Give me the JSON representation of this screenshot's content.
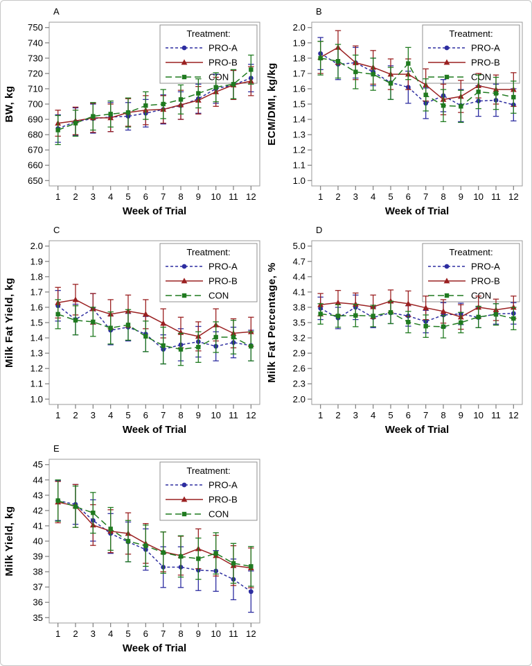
{
  "figure_style": {
    "background": "#ffffff",
    "border_color": "#c6c6c6",
    "frame_color": "#9a9a9a",
    "tick_color": "#7d7d7d",
    "text_color": "#000000",
    "legend_border_color": "#8f8f8f",
    "legend_background": "#ffffff",
    "treatments": [
      {
        "name": "PRO-A",
        "color": "#2d2da0",
        "marker": "circle",
        "dash": "4,3"
      },
      {
        "name": "PRO-B",
        "color": "#9a2021",
        "marker": "triangle",
        "dash": ""
      },
      {
        "name": "CON",
        "color": "#1f7a1f",
        "marker": "square",
        "dash": "9,5"
      }
    ]
  },
  "chart_data": [
    {
      "type": "line",
      "panel_label": "A",
      "xlabel": "Week of Trial",
      "ylabel": "BW, kg",
      "x": [
        1,
        2,
        3,
        4,
        5,
        6,
        7,
        8,
        9,
        10,
        11,
        12
      ],
      "ylim": [
        650,
        750
      ],
      "ystep": 10,
      "ydecimals": 0,
      "legend_title": "Treatment:",
      "legend_position": "top-right",
      "grid": false,
      "series": [
        {
          "name": "PRO-A",
          "values": [
            684,
            688.5,
            690.5,
            691.5,
            692,
            694,
            696.5,
            699,
            703.5,
            710,
            712.5,
            717
          ],
          "err": [
            9,
            9,
            9.5,
            9.5,
            9,
            9,
            9.5,
            9,
            9.5,
            9.5,
            9.5,
            9
          ]
        },
        {
          "name": "PRO-B",
          "values": [
            687.5,
            689,
            691,
            691,
            694.5,
            696,
            696.5,
            699.5,
            702.5,
            708,
            712.5,
            715
          ],
          "err": [
            8.5,
            9,
            9.5,
            9,
            9,
            9.5,
            9,
            9.5,
            9,
            9.5,
            9.5,
            9.5
          ]
        },
        {
          "name": "CON",
          "values": [
            683,
            687.5,
            692,
            693.5,
            694.5,
            699,
            700,
            703,
            707,
            711,
            713,
            722.5
          ],
          "err": [
            9.5,
            8.5,
            9,
            8.5,
            9.5,
            9,
            9.5,
            9.5,
            9.5,
            9.5,
            9.5,
            9.5
          ]
        }
      ]
    },
    {
      "type": "line",
      "panel_label": "B",
      "xlabel": "Week of Trial",
      "ylabel": "ECM/DMI, kg/kg",
      "x": [
        1,
        2,
        3,
        4,
        5,
        6,
        7,
        8,
        9,
        10,
        11,
        12
      ],
      "ylim": [
        1.0,
        2.0
      ],
      "ystep": 0.1,
      "ydecimals": 1,
      "legend_title": "Treatment:",
      "legend_position": "top-right",
      "grid": false,
      "series": [
        {
          "name": "PRO-A",
          "values": [
            1.83,
            1.76,
            1.77,
            1.71,
            1.64,
            1.61,
            1.505,
            1.555,
            1.49,
            1.52,
            1.525,
            1.495
          ],
          "err": [
            0.105,
            0.1,
            0.1,
            0.09,
            0.11,
            0.105,
            0.1,
            0.105,
            0.105,
            0.1,
            0.105,
            0.105
          ]
        },
        {
          "name": "PRO-B",
          "values": [
            1.805,
            1.87,
            1.77,
            1.74,
            1.695,
            1.695,
            1.625,
            1.53,
            1.55,
            1.62,
            1.595,
            1.595
          ],
          "err": [
            0.105,
            0.11,
            0.11,
            0.11,
            0.1,
            0.1,
            0.105,
            0.1,
            0.105,
            0.08,
            0.095,
            0.11
          ]
        },
        {
          "name": "CON",
          "values": [
            1.8,
            1.78,
            1.71,
            1.695,
            1.635,
            1.765,
            1.56,
            1.49,
            1.485,
            1.58,
            1.57,
            1.545
          ],
          "err": [
            0.11,
            0.11,
            0.11,
            0.105,
            0.105,
            0.105,
            0.105,
            0.105,
            0.105,
            0.11,
            0.105,
            0.105
          ]
        }
      ]
    },
    {
      "type": "line",
      "panel_label": "C",
      "xlabel": "Week of Trial",
      "ylabel": "Milk Fat Yield, kg",
      "x": [
        1,
        2,
        3,
        4,
        5,
        6,
        7,
        8,
        9,
        10,
        11,
        12
      ],
      "ylim": [
        1.0,
        2.0
      ],
      "ystep": 0.1,
      "ydecimals": 1,
      "legend_title": "Treatment:",
      "legend_position": "top-right",
      "grid": false,
      "series": [
        {
          "name": "PRO-A",
          "values": [
            1.61,
            1.52,
            1.59,
            1.45,
            1.47,
            1.425,
            1.325,
            1.355,
            1.375,
            1.345,
            1.37,
            1.35
          ],
          "err": [
            0.1,
            0.1,
            0.1,
            0.095,
            0.09,
            0.115,
            0.095,
            0.105,
            0.1,
            0.095,
            0.1,
            0.1
          ]
        },
        {
          "name": "PRO-B",
          "values": [
            1.63,
            1.65,
            1.59,
            1.555,
            1.575,
            1.555,
            1.495,
            1.435,
            1.41,
            1.485,
            1.43,
            1.44
          ],
          "err": [
            0.1,
            0.1,
            0.1,
            0.095,
            0.105,
            0.095,
            0.095,
            0.1,
            0.095,
            0.105,
            0.095,
            0.095
          ]
        },
        {
          "name": "CON",
          "values": [
            1.555,
            1.515,
            1.505,
            1.465,
            1.485,
            1.41,
            1.35,
            1.325,
            1.34,
            1.405,
            1.405,
            1.345
          ],
          "err": [
            0.095,
            0.095,
            0.095,
            0.105,
            0.1,
            0.1,
            0.12,
            0.105,
            0.1,
            0.1,
            0.11,
            0.095
          ]
        }
      ]
    },
    {
      "type": "line",
      "panel_label": "D",
      "xlabel": "Week of Trial",
      "ylabel": "Milk Fat Percentage, %",
      "x": [
        1,
        2,
        3,
        4,
        5,
        6,
        7,
        8,
        9,
        10,
        11,
        12
      ],
      "ylim": [
        2.0,
        5.0
      ],
      "ystep": 0.3,
      "ydecimals": 1,
      "legend_title": "Treatment:",
      "legend_position": "top-right",
      "grid": false,
      "series": [
        {
          "name": "PRO-A",
          "values": [
            3.78,
            3.59,
            3.8,
            3.6,
            3.69,
            3.63,
            3.52,
            3.65,
            3.67,
            3.6,
            3.67,
            3.68
          ],
          "err": [
            0.22,
            0.21,
            0.24,
            0.2,
            0.21,
            0.2,
            0.22,
            0.24,
            0.21,
            0.2,
            0.2,
            0.21
          ]
        },
        {
          "name": "PRO-B",
          "values": [
            3.85,
            3.89,
            3.86,
            3.81,
            3.92,
            3.87,
            3.79,
            3.72,
            3.61,
            3.8,
            3.75,
            3.8
          ],
          "err": [
            0.22,
            0.24,
            0.22,
            0.23,
            0.22,
            0.25,
            0.23,
            0.23,
            0.24,
            0.22,
            0.21,
            0.22
          ]
        },
        {
          "name": "CON",
          "values": [
            3.67,
            3.63,
            3.64,
            3.63,
            3.7,
            3.51,
            3.43,
            3.42,
            3.5,
            3.61,
            3.66,
            3.58
          ],
          "err": [
            0.2,
            0.22,
            0.22,
            0.21,
            0.22,
            0.21,
            0.22,
            0.22,
            0.2,
            0.21,
            0.21,
            0.22
          ]
        }
      ]
    },
    {
      "type": "line",
      "panel_label": "E",
      "xlabel": "Week of Trial",
      "ylabel": "Milk Yield, kg",
      "x": [
        1,
        2,
        3,
        4,
        5,
        6,
        7,
        8,
        9,
        10,
        11,
        12
      ],
      "ylim": [
        35,
        45
      ],
      "ystep": 1,
      "ydecimals": 0,
      "legend_title": "Treatment:",
      "legend_position": "top-right",
      "grid": false,
      "series": [
        {
          "name": "PRO-A",
          "values": [
            42.65,
            42.4,
            41.35,
            40.5,
            39.95,
            39.45,
            38.3,
            38.3,
            38.1,
            38.05,
            37.5,
            36.7
          ],
          "err": [
            1.3,
            1.3,
            1.35,
            1.3,
            1.3,
            1.35,
            1.33,
            1.33,
            1.33,
            1.33,
            1.33,
            1.35
          ]
        },
        {
          "name": "PRO-B",
          "values": [
            42.55,
            42.3,
            41.05,
            40.65,
            40.5,
            39.85,
            39.3,
            39.05,
            39.5,
            39.05,
            38.4,
            38.25
          ],
          "err": [
            1.35,
            1.4,
            1.33,
            1.4,
            1.35,
            1.3,
            1.3,
            1.27,
            1.3,
            1.33,
            1.3,
            1.3
          ]
        },
        {
          "name": "CON",
          "values": [
            42.65,
            42.25,
            41.85,
            40.8,
            40.0,
            39.7,
            39.25,
            39.0,
            38.85,
            39.2,
            38.55,
            38.35
          ],
          "err": [
            1.35,
            1.35,
            1.33,
            1.4,
            1.35,
            1.35,
            1.35,
            1.35,
            1.35,
            1.35,
            1.3,
            1.3
          ]
        }
      ]
    }
  ]
}
